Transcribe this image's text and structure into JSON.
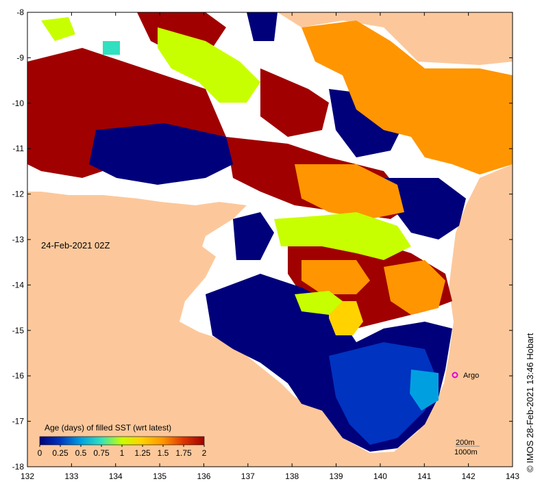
{
  "map": {
    "lon_ticks": [
      "132",
      "133",
      "134",
      "135",
      "136",
      "137",
      "138",
      "139",
      "140",
      "141",
      "142",
      "143"
    ],
    "lat_ticks": [
      "-8",
      "-9",
      "-10",
      "-11",
      "-12",
      "-13",
      "-14",
      "-15",
      "-16",
      "-17",
      "-18"
    ],
    "date_label": "24-Feb-2021 02Z",
    "credit": "© IMOS 28-Feb-2021 13:46 Hobart",
    "argo_label": "Argo",
    "contour_labels": [
      "200m",
      "1000m"
    ],
    "colors": {
      "land": "#fcc89b",
      "nodata": "#ffffff",
      "argo": "#dd00dd"
    }
  },
  "legend": {
    "title": "Age (days) of filled SST (wrt latest)",
    "ticks": [
      "0",
      "0.25",
      "0.5",
      "0.75",
      "1",
      "1.25",
      "1.5",
      "1.75",
      "2"
    ],
    "colors": [
      "#00007a",
      "#0033c0",
      "#00a0e0",
      "#30e0c0",
      "#c8ff00",
      "#ffd200",
      "#ff9500",
      "#e03800",
      "#a00000"
    ]
  }
}
